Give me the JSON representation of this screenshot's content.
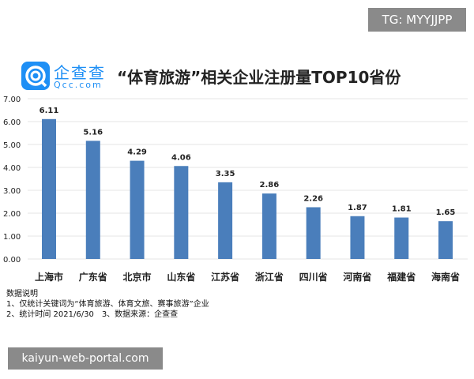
{
  "watermark_top": "TG: MYYJJPP",
  "watermark_bottom": "kaiyun-web-portal.com",
  "logo": {
    "name": "企查查",
    "url": "Qcc.com",
    "color": "#1e8ff5"
  },
  "chart_data": {
    "type": "bar",
    "title": "“体育旅游”相关企业注册量TOP10省份",
    "categories": [
      "上海市",
      "广东省",
      "北京市",
      "山东省",
      "江苏省",
      "浙江省",
      "四川省",
      "河南省",
      "福建省",
      "海南省"
    ],
    "values": [
      6.11,
      5.16,
      4.29,
      4.06,
      3.35,
      2.86,
      2.26,
      1.87,
      1.81,
      1.65
    ],
    "data_labels": [
      "6.11",
      "5.16",
      "4.29",
      "4.06",
      "3.35",
      "2.86",
      "2.26",
      "1.87",
      "1.81",
      "1.65"
    ],
    "ylim": [
      0,
      7
    ],
    "yticks": [
      "0.00",
      "1.00",
      "2.00",
      "3.00",
      "4.00",
      "5.00",
      "6.00",
      "7.00"
    ],
    "grid": true,
    "bar_color": "#4a7ebb"
  },
  "notes": [
    "数据说明",
    "1、仅统计关键词为“体育旅游、体育文旅、赛事旅游”企业",
    "2、统计时间 2021/6/30　3、数据来源：企查查"
  ]
}
